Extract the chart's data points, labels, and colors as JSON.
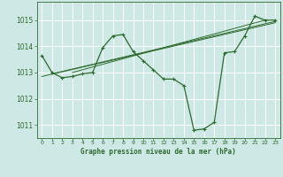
{
  "background_color": "#cde8e5",
  "grid_color": "#ffffff",
  "line_color": "#2d6a2d",
  "ylabel_values": [
    1011,
    1012,
    1013,
    1014,
    1015
  ],
  "xlim": [
    -0.5,
    23.5
  ],
  "ylim": [
    1010.5,
    1015.7
  ],
  "xlabel": "Graphe pression niveau de la mer (hPa)",
  "xticks": [
    0,
    1,
    2,
    3,
    4,
    5,
    6,
    7,
    8,
    9,
    10,
    11,
    12,
    13,
    14,
    15,
    16,
    17,
    18,
    19,
    20,
    21,
    22,
    23
  ],
  "main_series": {
    "x": [
      0,
      1,
      2,
      3,
      4,
      5,
      6,
      7,
      8,
      9,
      10,
      11,
      12,
      13,
      14,
      15,
      16,
      17,
      18,
      19,
      20,
      21,
      22,
      23
    ],
    "y": [
      1013.65,
      1013.0,
      1012.8,
      1012.85,
      1012.95,
      1013.0,
      1013.95,
      1014.4,
      1014.45,
      1013.8,
      1013.45,
      1013.1,
      1012.75,
      1012.75,
      1012.5,
      1010.8,
      1010.85,
      1011.1,
      1013.75,
      1013.8,
      1014.4,
      1015.15,
      1015.0,
      1015.0
    ]
  },
  "trend_series": [
    {
      "x": [
        0,
        23
      ],
      "y": [
        1012.85,
        1014.9
      ]
    },
    {
      "x": [
        1,
        23
      ],
      "y": [
        1012.95,
        1014.95
      ]
    },
    {
      "x": [
        3,
        22
      ],
      "y": [
        1013.0,
        1015.0
      ]
    }
  ]
}
